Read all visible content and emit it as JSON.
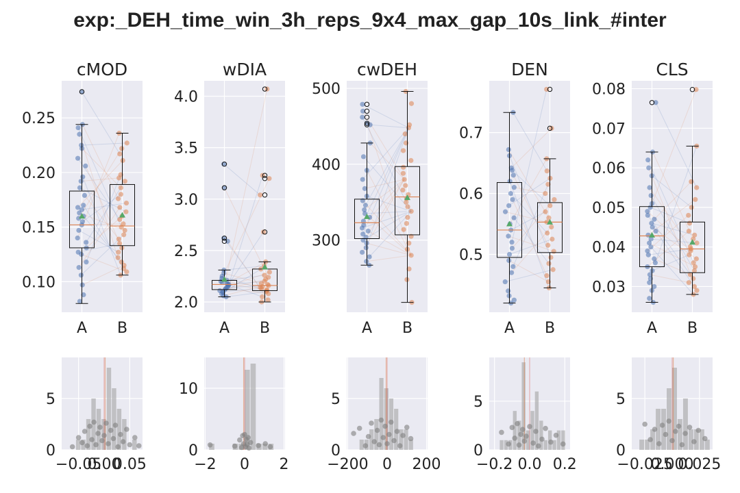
{
  "figure_title": "exp:_DEH_time_win_3h_reps_9x4_max_gap_10s_link_#inter",
  "colors": {
    "background": "#eaeaf2",
    "grid": "#ffffff",
    "series_a": "#4c72b0",
    "series_b": "#dd8452",
    "mean_marker": "#55a868",
    "hist": "#a9a9a9",
    "hist_points": "#7f7f7f",
    "median_line": "#dd8452",
    "ref_line": "#c44e52"
  },
  "chart_data": [
    {
      "type": "box",
      "title": "cMOD",
      "categories": [
        "A",
        "B"
      ],
      "ylim": [
        0.072,
        0.284
      ],
      "yticks": [
        0.1,
        0.15,
        0.2,
        0.25
      ],
      "ytick_labels": [
        "0.10",
        "0.15",
        "0.20",
        "0.25"
      ],
      "stats": {
        "A": {
          "whislo": 0.08,
          "q1": 0.131,
          "med": 0.152,
          "q3": 0.183,
          "whishi": 0.244,
          "mean": 0.16,
          "fliers": [
            0.274
          ]
        },
        "B": {
          "whislo": 0.106,
          "q1": 0.133,
          "med": 0.151,
          "q3": 0.189,
          "whishi": 0.236,
          "mean": 0.161,
          "fliers": []
        }
      },
      "points": {
        "A": [
          0.274,
          0.244,
          0.241,
          0.235,
          0.225,
          0.222,
          0.213,
          0.206,
          0.196,
          0.192,
          0.186,
          0.179,
          0.17,
          0.168,
          0.166,
          0.163,
          0.16,
          0.158,
          0.155,
          0.152,
          0.147,
          0.14,
          0.136,
          0.131,
          0.127,
          0.125,
          0.118,
          0.113,
          0.106,
          0.097,
          0.088,
          0.082
        ],
        "B": [
          0.236,
          0.227,
          0.222,
          0.217,
          0.211,
          0.198,
          0.195,
          0.192,
          0.186,
          0.18,
          0.176,
          0.172,
          0.168,
          0.164,
          0.16,
          0.157,
          0.153,
          0.15,
          0.147,
          0.143,
          0.139,
          0.135,
          0.131,
          0.127,
          0.122,
          0.118,
          0.115,
          0.112,
          0.109,
          0.106
        ]
      }
    },
    {
      "type": "box",
      "title": "wDIA",
      "categories": [
        "A",
        "B"
      ],
      "ylim": [
        1.9,
        4.15
      ],
      "yticks": [
        2.0,
        2.5,
        3.0,
        3.5,
        4.0
      ],
      "ytick_labels": [
        "2.0",
        "2.5",
        "3.0",
        "3.5",
        "4.0"
      ],
      "stats": {
        "A": {
          "whislo": 2.05,
          "q1": 2.12,
          "med": 2.17,
          "q3": 2.21,
          "whishi": 2.31,
          "mean": 2.22,
          "fliers": [
            3.34,
            3.11,
            2.62,
            2.59
          ]
        },
        "B": {
          "whislo": 2.0,
          "q1": 2.11,
          "med": 2.16,
          "q3": 2.32,
          "whishi": 2.39,
          "mean": 2.34,
          "fliers": [
            4.07,
            3.23,
            3.2,
            3.04,
            2.68
          ]
        }
      },
      "points": {
        "A": [
          3.34,
          3.11,
          2.62,
          2.59,
          2.31,
          2.28,
          2.25,
          2.23,
          2.21,
          2.2,
          2.19,
          2.18,
          2.17,
          2.17,
          2.16,
          2.15,
          2.14,
          2.13,
          2.12,
          2.11,
          2.1,
          2.09,
          2.08,
          2.06,
          2.05
        ],
        "B": [
          4.07,
          3.23,
          3.2,
          3.04,
          2.68,
          2.39,
          2.35,
          2.32,
          2.29,
          2.26,
          2.24,
          2.22,
          2.2,
          2.18,
          2.17,
          2.16,
          2.15,
          2.14,
          2.13,
          2.12,
          2.11,
          2.1,
          2.08,
          2.05,
          2.02,
          2.0
        ]
      }
    },
    {
      "type": "box",
      "title": "cwDEH",
      "categories": [
        "A",
        "B"
      ],
      "ylim": [
        205,
        510
      ],
      "yticks": [
        300,
        400,
        500
      ],
      "ytick_labels": [
        "300",
        "400",
        "500"
      ],
      "stats": {
        "A": {
          "whislo": 267,
          "q1": 302,
          "med": 323,
          "q3": 354,
          "whishi": 428,
          "mean": 331,
          "fliers": [
            479,
            470,
            462,
            454,
            452
          ]
        },
        "B": {
          "whislo": 218,
          "q1": 307,
          "med": 357,
          "q3": 397,
          "whishi": 496,
          "mean": 356,
          "fliers": []
        }
      },
      "points": {
        "A": [
          479,
          470,
          462,
          454,
          452,
          428,
          410,
          392,
          380,
          368,
          358,
          352,
          346,
          340,
          335,
          330,
          325,
          320,
          316,
          312,
          308,
          304,
          300,
          296,
          290,
          284,
          278,
          272,
          267
        ],
        "B": [
          496,
          480,
          452,
          448,
          440,
          428,
          418,
          405,
          396,
          388,
          380,
          372,
          366,
          360,
          355,
          350,
          344,
          338,
          330,
          322,
          314,
          305,
          296,
          288,
          280,
          262,
          248,
          218
        ]
      }
    },
    {
      "type": "box",
      "title": "DEN",
      "categories": [
        "A",
        "B"
      ],
      "ylim": [
        0.405,
        0.785
      ],
      "yticks": [
        0.5,
        0.6,
        0.7
      ],
      "ytick_labels": [
        "0.5",
        "0.6",
        "0.7"
      ],
      "stats": {
        "A": {
          "whislo": 0.42,
          "q1": 0.495,
          "med": 0.54,
          "q3": 0.618,
          "whishi": 0.733,
          "mean": 0.55,
          "fliers": []
        },
        "B": {
          "whislo": 0.445,
          "q1": 0.503,
          "med": 0.553,
          "q3": 0.585,
          "whishi": 0.657,
          "mean": 0.553,
          "fliers": [
            0.771,
            0.707
          ]
        }
      },
      "points": {
        "A": [
          0.733,
          0.672,
          0.662,
          0.642,
          0.638,
          0.63,
          0.62,
          0.61,
          0.6,
          0.59,
          0.58,
          0.57,
          0.56,
          0.55,
          0.54,
          0.53,
          0.52,
          0.51,
          0.5,
          0.49,
          0.48,
          0.47,
          0.455,
          0.44,
          0.432,
          0.425,
          0.42
        ],
        "B": [
          0.771,
          0.707,
          0.657,
          0.637,
          0.625,
          0.615,
          0.6,
          0.59,
          0.58,
          0.57,
          0.56,
          0.553,
          0.545,
          0.535,
          0.525,
          0.515,
          0.505,
          0.495,
          0.485,
          0.475,
          0.465,
          0.455,
          0.445
        ]
      }
    },
    {
      "type": "box",
      "title": "CLS",
      "categories": [
        "A",
        "B"
      ],
      "ylim": [
        0.0235,
        0.082
      ],
      "yticks": [
        0.03,
        0.04,
        0.05,
        0.06,
        0.07,
        0.08
      ],
      "ytick_labels": [
        "0.03",
        "0.04",
        "0.05",
        "0.06",
        "0.07",
        "0.08"
      ],
      "stats": {
        "A": {
          "whislo": 0.026,
          "q1": 0.035,
          "med": 0.0428,
          "q3": 0.0502,
          "whishi": 0.064,
          "mean": 0.043,
          "fliers": [
            0.0765
          ]
        },
        "B": {
          "whislo": 0.028,
          "q1": 0.0335,
          "med": 0.0395,
          "q3": 0.0463,
          "whishi": 0.0655,
          "mean": 0.0412,
          "fliers": [
            0.0798
          ]
        }
      },
      "points": {
        "A": [
          0.0765,
          0.064,
          0.062,
          0.06,
          0.058,
          0.055,
          0.053,
          0.051,
          0.05,
          0.049,
          0.048,
          0.047,
          0.046,
          0.045,
          0.044,
          0.043,
          0.042,
          0.041,
          0.04,
          0.039,
          0.038,
          0.037,
          0.036,
          0.035,
          0.034,
          0.033,
          0.032,
          0.031,
          0.03,
          0.029,
          0.027,
          0.026
        ],
        "B": [
          0.0798,
          0.0655,
          0.0565,
          0.055,
          0.052,
          0.05,
          0.048,
          0.046,
          0.044,
          0.043,
          0.042,
          0.041,
          0.04,
          0.0395,
          0.039,
          0.038,
          0.037,
          0.036,
          0.035,
          0.034,
          0.033,
          0.032,
          0.031,
          0.03,
          0.029,
          0.028
        ]
      }
    },
    {
      "type": "histogram",
      "title": "",
      "xlim": [
        -0.083,
        0.075
      ],
      "ylim": [
        0,
        9
      ],
      "xticks": [
        -0.05,
        0.0,
        0.05
      ],
      "xtick_labels": [
        "−0.05",
        "0.00",
        "0.05"
      ],
      "yticks": [
        0,
        5
      ],
      "ytick_labels": [
        "0",
        "5"
      ],
      "bins": [
        -0.065,
        -0.055,
        -0.045,
        -0.035,
        -0.025,
        -0.015,
        -0.005,
        0.005,
        0.015,
        0.025,
        0.035,
        0.045,
        0.055,
        0.065,
        0.075
      ],
      "counts": [
        0,
        1,
        1,
        3,
        5,
        4,
        3,
        8,
        6,
        4,
        3,
        0,
        1,
        0
      ],
      "median": 0.002,
      "reference_line": 0.0,
      "points_x": [
        -0.062,
        -0.05,
        -0.043,
        -0.038,
        -0.033,
        -0.028,
        -0.024,
        -0.02,
        -0.016,
        -0.012,
        -0.008,
        -0.004,
        0.0,
        0.004,
        0.008,
        0.013,
        0.018,
        0.022,
        0.027,
        0.032,
        0.037,
        0.044,
        0.05,
        0.06,
        0.068
      ],
      "points_y": [
        0.3,
        1.2,
        0.7,
        1.8,
        0.4,
        2.3,
        1.0,
        2.7,
        0.5,
        1.6,
        2.2,
        0.9,
        1.4,
        2.6,
        0.6,
        1.9,
        1.1,
        2.4,
        0.3,
        1.5,
        0.8,
        2.0,
        0.5,
        1.2,
        0.4
      ]
    },
    {
      "type": "histogram",
      "title": "",
      "xlim": [
        -2.05,
        2.05
      ],
      "ylim": [
        0,
        15
      ],
      "xticks": [
        -2,
        0,
        2
      ],
      "xtick_labels": [
        "−2",
        "0",
        "2"
      ],
      "yticks": [
        0,
        10
      ],
      "ytick_labels": [
        "0",
        "10"
      ],
      "bins": [
        -1.8,
        -1.5,
        -1.2,
        -0.9,
        -0.6,
        -0.3,
        0.0,
        0.3,
        0.6,
        0.9,
        1.2,
        1.5
      ],
      "counts": [
        1,
        0,
        0,
        0,
        1,
        1,
        13,
        14,
        1,
        1,
        1
      ],
      "median": -0.05,
      "reference_line": 0.0,
      "points_x": [
        -1.75,
        -0.5,
        -0.25,
        -0.15,
        -0.1,
        -0.05,
        0.0,
        0.05,
        0.08,
        0.12,
        0.18,
        0.22,
        0.3,
        0.7,
        1.05,
        1.3
      ],
      "points_y": [
        0.8,
        0.6,
        1.6,
        0.4,
        2.3,
        1.0,
        2.5,
        0.5,
        1.7,
        0.9,
        2.0,
        0.3,
        1.2,
        0.7,
        1.0,
        0.5
      ]
    },
    {
      "type": "histogram",
      "title": "",
      "xlim": [
        -205,
        205
      ],
      "ylim": [
        0,
        9
      ],
      "xticks": [
        -200,
        0,
        200
      ],
      "xtick_labels": [
        "−200",
        "0",
        "200"
      ],
      "yticks": [
        0,
        5
      ],
      "ytick_labels": [
        "0",
        "5"
      ],
      "bins": [
        -140,
        -115,
        -90,
        -65,
        -40,
        -15,
        10,
        35,
        60,
        85,
        110,
        135
      ],
      "counts": [
        1,
        1,
        2,
        3,
        7,
        6,
        5,
        4,
        2,
        2,
        1
      ],
      "median": -5,
      "reference_line": 0,
      "points_x": [
        -170,
        -140,
        -110,
        -95,
        -80,
        -65,
        -50,
        -40,
        -30,
        -20,
        -10,
        0,
        10,
        20,
        35,
        50,
        65,
        80,
        100,
        120
      ],
      "points_y": [
        1.6,
        2.1,
        0.4,
        1.3,
        2.6,
        0.8,
        1.9,
        0.5,
        2.9,
        1.2,
        2.3,
        0.6,
        1.5,
        2.7,
        0.9,
        1.8,
        0.4,
        1.4,
        2.2,
        1.1
      ]
    },
    {
      "type": "histogram",
      "title": "",
      "xlim": [
        -0.23,
        0.23
      ],
      "ylim": [
        0,
        9.5
      ],
      "xticks": [
        -0.2,
        0.0,
        0.2
      ],
      "xtick_labels": [
        "−0.2",
        "0.0",
        "0.2"
      ],
      "yticks": [
        0,
        5
      ],
      "ytick_labels": [
        "0",
        "5"
      ],
      "bins": [
        -0.17,
        -0.145,
        -0.12,
        -0.095,
        -0.07,
        -0.045,
        -0.02,
        0.005,
        0.03,
        0.055,
        0.08,
        0.105,
        0.13,
        0.155,
        0.18,
        0.205
      ],
      "counts": [
        1,
        1,
        1,
        4,
        3,
        9,
        2,
        4,
        6,
        3,
        1,
        2,
        1,
        2,
        2
      ],
      "median": -0.03,
      "reference_line": 0.0,
      "points_x": [
        -0.16,
        -0.12,
        -0.1,
        -0.085,
        -0.07,
        -0.06,
        -0.05,
        -0.04,
        -0.03,
        -0.02,
        0.0,
        0.02,
        0.035,
        0.05,
        0.07,
        0.09,
        0.12,
        0.15,
        0.19
      ],
      "points_y": [
        1.8,
        0.6,
        2.3,
        1.2,
        2.7,
        0.5,
        1.6,
        2.1,
        0.9,
        1.4,
        2.4,
        0.7,
        1.9,
        0.4,
        1.1,
        2.2,
        0.8,
        1.5,
        0.6
      ]
    },
    {
      "type": "histogram",
      "title": "",
      "xlim": [
        -0.037,
        0.037
      ],
      "ylim": [
        0,
        9
      ],
      "xticks": [
        -0.025,
        0.0,
        0.025
      ],
      "xtick_labels": [
        "−0.025",
        "0.000",
        "0.025"
      ],
      "yticks": [
        0,
        5
      ],
      "ytick_labels": [
        "0",
        "5"
      ],
      "bins": [
        -0.03,
        -0.025,
        -0.02,
        -0.015,
        -0.01,
        -0.005,
        0.0,
        0.005,
        0.01,
        0.015,
        0.02,
        0.025,
        0.03,
        0.035
      ],
      "counts": [
        1,
        1,
        2,
        4,
        4,
        6,
        8,
        3,
        5,
        2,
        2,
        2,
        1
      ],
      "median": 0.001,
      "reference_line": 0.0,
      "points_x": [
        -0.025,
        -0.02,
        -0.016,
        -0.012,
        -0.009,
        -0.006,
        -0.003,
        0.0,
        0.003,
        0.006,
        0.009,
        0.012,
        0.016,
        0.02,
        0.024,
        0.03
      ],
      "points_y": [
        2.5,
        1.0,
        2.0,
        0.6,
        2.4,
        1.5,
        2.8,
        0.9,
        1.8,
        2.3,
        0.5,
        1.6,
        2.2,
        0.8,
        1.9,
        1.1
      ]
    }
  ]
}
